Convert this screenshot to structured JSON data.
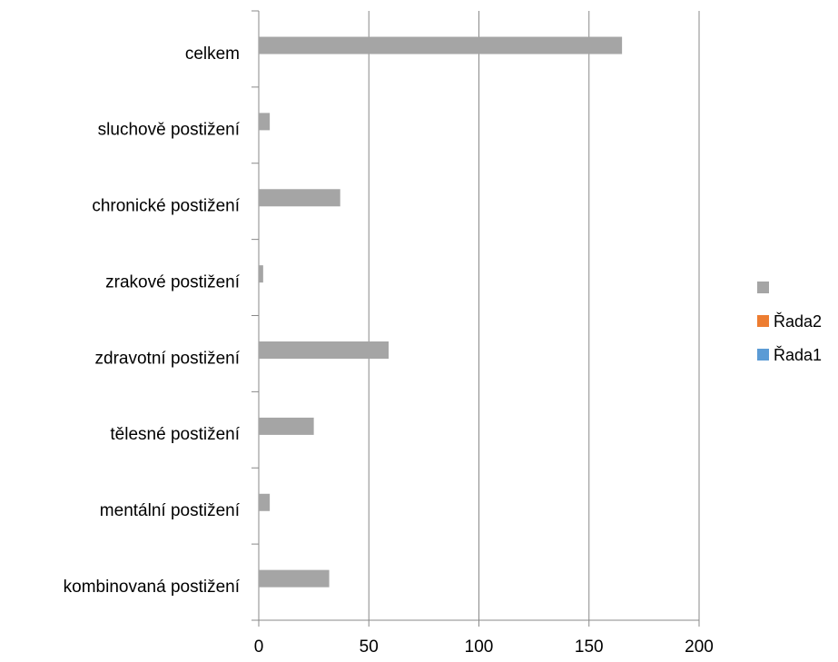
{
  "chart_data": {
    "type": "bar",
    "orientation": "horizontal",
    "categories": [
      "kombinovaná postižení",
      "mentální postižení",
      "tělesné postižení",
      "zdravotní postižení",
      "zrakové postižení",
      "chronické postižení",
      "sluchově postižení",
      "celkem"
    ],
    "series": [
      {
        "name": "Řada1",
        "color": "#5b9bd5",
        "values": [
          0,
          0,
          0,
          0,
          0,
          0,
          0,
          0
        ]
      },
      {
        "name": "Řada2",
        "color": "#ed7d31",
        "values": [
          0,
          0,
          0,
          0,
          0,
          0,
          0,
          0
        ]
      },
      {
        "name": "",
        "color": "#a5a5a5",
        "values": [
          32,
          5,
          25,
          59,
          2,
          37,
          5,
          165
        ]
      }
    ],
    "xlim": [
      0,
      200
    ],
    "xticks": [
      "0",
      "50",
      "100",
      "150",
      "200"
    ],
    "grid": "vertical",
    "legend_position": "right",
    "legend_order": [
      "",
      "Řada2",
      "Řada1"
    ],
    "title": "",
    "xlabel": "",
    "ylabel": ""
  }
}
